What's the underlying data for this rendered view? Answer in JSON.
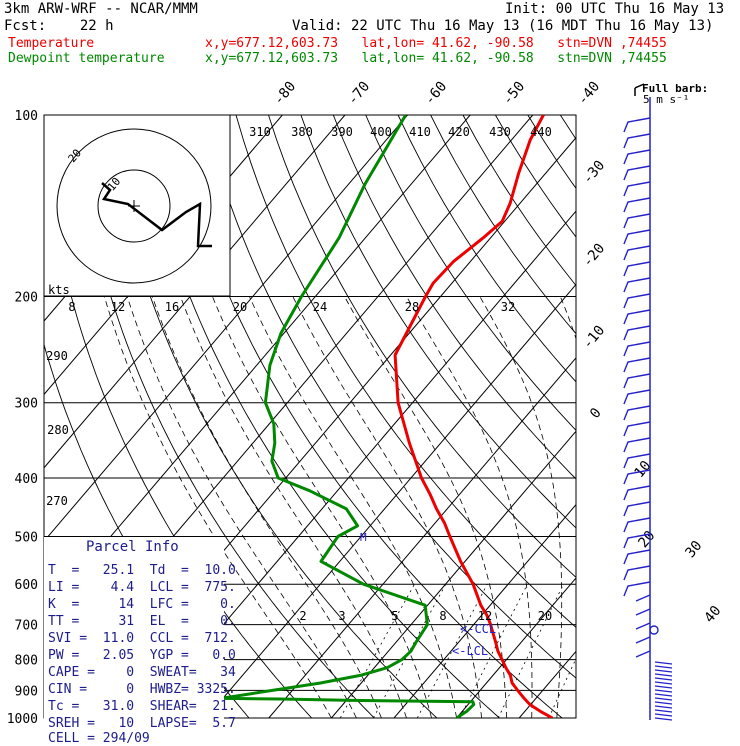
{
  "header": {
    "model": "3km ARW-WRF -- NCAR/MMM",
    "init": "Init: 00 UTC Thu 16 May 13",
    "fcst": "Fcst:    22 h",
    "valid": "Valid: 22 UTC Thu 16 May 13 (16 MDT Thu 16 May 13)",
    "temperature_label": "Temperature",
    "dewpoint_label": "Dewpoint temperature",
    "location": "x,y=677.12,603.73   lat,lon= 41.62, -90.58   stn=DVN ,74455"
  },
  "colors": {
    "temperature": "#ee0000",
    "dewpoint": "#008800",
    "wind": "#2222cc",
    "parcel_text": "#1c1c8c",
    "background": "#ffffff"
  },
  "wind_barb_label": "Full barb:",
  "wind_barb_units": "5 m s⁻¹",
  "hodograph": {
    "units_label": "kts",
    "ring_label": "20",
    "inner_ring_label": "10",
    "ring_ticks": [
      "8",
      "12",
      "16",
      "20",
      "24",
      "28",
      "32"
    ]
  },
  "lcl_labels": [
    "<-CCL",
    "<-LCL"
  ],
  "parcel_info": {
    "title": "Parcel Info",
    "rows": [
      "T  =   25.1  Td  =  10.0",
      "LI =    4.4  LCL =  775.",
      "K  =     14  LFC =    0.",
      "TT =     31  EL  =    0.",
      "SVI =  11.0  CCL =  712.",
      "PW =   2.05  YGP =   0.0",
      "CAPE =    0  SWEAT=   34",
      "CIN =     0  HWBZ= 3325.",
      "Tc =   31.0  SHEAR=  21.",
      "SREH =   10  LAPSE=  5.7",
      "CELL = 294/09"
    ]
  },
  "chart_data": {
    "type": "line",
    "title": "",
    "xlabel": "",
    "ylabel": "",
    "y_scale": "log pressure (hPa)",
    "ylim": [
      1000,
      100
    ],
    "pressure_ticks": [
      100,
      200,
      300,
      400,
      500,
      600,
      700,
      800,
      900,
      1000
    ],
    "isotherm_labels": [
      "-80",
      "-70",
      "-60",
      "-50",
      "-40",
      "-30",
      "-20",
      "-10",
      "0",
      "10",
      "20",
      "30",
      "40"
    ],
    "dry_adiabat_labels": [
      "310",
      "380",
      "390",
      "400",
      "410",
      "420",
      "430",
      "440",
      "290",
      "280",
      "270"
    ],
    "mixing_ratio_labels": [
      "2",
      "3",
      "5",
      "8",
      "12",
      "20"
    ],
    "series": [
      {
        "name": "Temperature",
        "pressure": [
          1000,
          975,
          950,
          925,
          900,
          875,
          850,
          825,
          800,
          775,
          750,
          712,
          700,
          675,
          650,
          600,
          550,
          500,
          475,
          450,
          425,
          400,
          350,
          300,
          250,
          200,
          190,
          175,
          160,
          150,
          140,
          125,
          110,
          100
        ],
        "temp": [
          25.3,
          22.5,
          19.9,
          17.9,
          16.0,
          14.1,
          12.8,
          11.0,
          9.3,
          7.5,
          6.0,
          3.5,
          2.7,
          0.8,
          -1.5,
          -5.6,
          -10.7,
          -15.8,
          -18.5,
          -21.7,
          -24.8,
          -28.3,
          -35.0,
          -42.3,
          -49.3,
          -52.4,
          -53.0,
          -52.7,
          -51.2,
          -50.4,
          -51.6,
          -54.3,
          -57.0,
          -58.3
        ]
      },
      {
        "name": "Dewpoint temperature",
        "pressure": [
          1000,
          975,
          950,
          940,
          935,
          930,
          928,
          925,
          900,
          875,
          850,
          825,
          800,
          775,
          750,
          725,
          700,
          650,
          600,
          550,
          500,
          480,
          450,
          420,
          400,
          375,
          350,
          325,
          300,
          260,
          230,
          200,
          160,
          130,
          100
        ],
        "dewpoint": [
          10.0,
          10.7,
          10.9,
          10.4,
          -9.0,
          -20.8,
          -30.0,
          -29.6,
          -23.2,
          -16.5,
          -11.2,
          -7.9,
          -6.7,
          -6.4,
          -6.8,
          -7.1,
          -7.4,
          -10.4,
          -23.1,
          -33.0,
          -33.7,
          -32.0,
          -36.1,
          -44.4,
          -51.2,
          -54.5,
          -56.5,
          -59.3,
          -63.5,
          -67.9,
          -70.5,
          -72.2,
          -74.2,
          -77.4,
          -80.3
        ]
      }
    ],
    "legend": "top-left"
  }
}
